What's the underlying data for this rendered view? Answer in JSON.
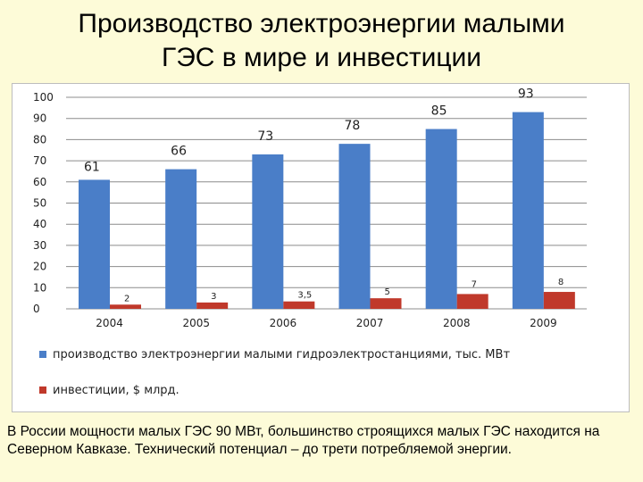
{
  "title": {
    "line1": "Производство электроэнергии малыми",
    "line2": "ГЭС в мире и инвестиции"
  },
  "chart_data": {
    "type": "bar",
    "categories": [
      "2004",
      "2005",
      "2006",
      "2007",
      "2008",
      "2009"
    ],
    "series": [
      {
        "name": "производство электроэнергии малыми гидроэлектростанциями, тыс. МВт",
        "values": [
          61,
          66,
          73,
          78,
          85,
          93
        ],
        "labels": [
          "61",
          "66",
          "73",
          "78",
          "85",
          "93"
        ],
        "color": "#4a7ec8"
      },
      {
        "name": "инвестиции, $ млрд.",
        "values": [
          2,
          3,
          3.5,
          5,
          7,
          8
        ],
        "labels": [
          "2",
          "3",
          "3,5",
          "5",
          "7",
          "8"
        ],
        "color": "#c0392b"
      }
    ],
    "yticks": [
      "0",
      "10",
      "20",
      "30",
      "40",
      "50",
      "60",
      "70",
      "80",
      "90",
      "100"
    ],
    "ylim": [
      0,
      100
    ],
    "grid": true,
    "legend": "bottom"
  },
  "caption": "В России мощности малых ГЭС 90 МВт, большинство строящихся малых ГЭС находится на Северном Кавказе. Технический потенциал – до трети потребляемой энергии."
}
